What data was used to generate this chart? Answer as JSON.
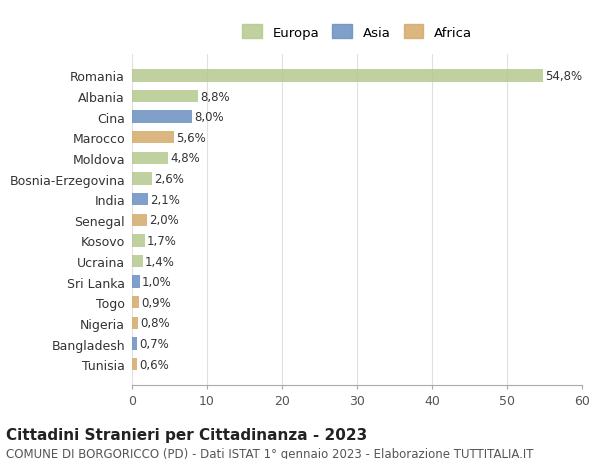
{
  "countries": [
    "Romania",
    "Albania",
    "Cina",
    "Marocco",
    "Moldova",
    "Bosnia-Erzegovina",
    "India",
    "Senegal",
    "Kosovo",
    "Ucraina",
    "Sri Lanka",
    "Togo",
    "Nigeria",
    "Bangladesh",
    "Tunisia"
  ],
  "values": [
    54.8,
    8.8,
    8.0,
    5.6,
    4.8,
    2.6,
    2.1,
    2.0,
    1.7,
    1.4,
    1.0,
    0.9,
    0.8,
    0.7,
    0.6
  ],
  "labels": [
    "54,8%",
    "8,8%",
    "8,0%",
    "5,6%",
    "4,8%",
    "2,6%",
    "2,1%",
    "2,0%",
    "1,7%",
    "1,4%",
    "1,0%",
    "0,9%",
    "0,8%",
    "0,7%",
    "0,6%"
  ],
  "continents": [
    "Europa",
    "Europa",
    "Asia",
    "Africa",
    "Europa",
    "Europa",
    "Asia",
    "Africa",
    "Europa",
    "Europa",
    "Asia",
    "Africa",
    "Africa",
    "Asia",
    "Africa"
  ],
  "colors": {
    "Europa": "#b5c98e",
    "Asia": "#6a8fc1",
    "Africa": "#d4a96a"
  },
  "legend": {
    "Europa": "#b5c98e",
    "Asia": "#6a8fc1",
    "Africa": "#d4a96a"
  },
  "xlim": [
    0,
    60
  ],
  "xticks": [
    0,
    10,
    20,
    30,
    40,
    50,
    60
  ],
  "title": "Cittadini Stranieri per Cittadinanza - 2023",
  "subtitle": "COMUNE DI BORGORICCO (PD) - Dati ISTAT 1° gennaio 2023 - Elaborazione TUTTITALIA.IT",
  "background_color": "#ffffff",
  "grid_color": "#e0e0e0",
  "bar_height": 0.6,
  "label_fontsize": 8.5,
  "ytick_fontsize": 9,
  "xtick_fontsize": 9,
  "title_fontsize": 11,
  "subtitle_fontsize": 8.5
}
